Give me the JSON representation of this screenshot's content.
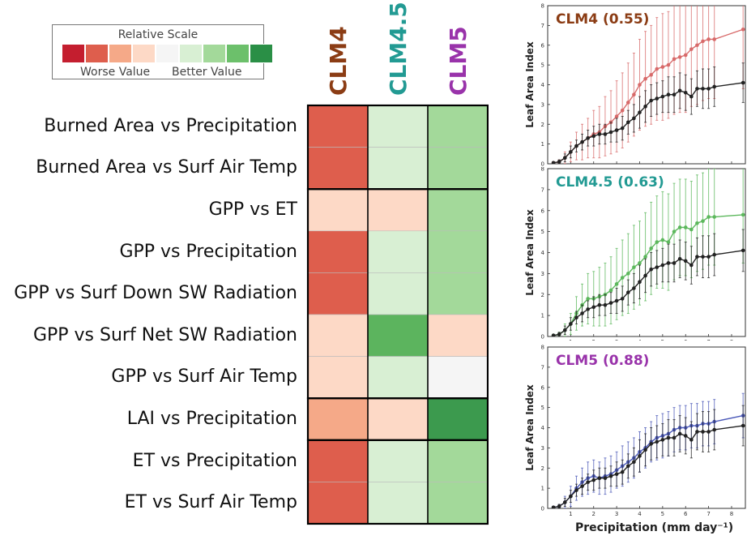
{
  "legend": {
    "title": "Relative Scale",
    "worse_label": "Worse Value",
    "better_label": "Better Value",
    "colors": [
      "#c41e2f",
      "#de5e4d",
      "#f5a988",
      "#fdd9c6",
      "#f5f5f5",
      "#d8efd3",
      "#a3d99a",
      "#6cc06b",
      "#2a8f46"
    ]
  },
  "chart_data": [
    {
      "type": "heatmap",
      "columns": [
        {
          "label": "CLM4",
          "color": "#8b3c14"
        },
        {
          "label": "CLM4.5",
          "color": "#229a93"
        },
        {
          "label": "CLM5",
          "color": "#9933aa"
        }
      ],
      "rows": [
        "Burned Area vs Precipitation",
        "Burned Area vs Surf Air Temp",
        "GPP vs ET",
        "GPP vs Precipitation",
        "GPP vs Surf Down SW Radiation",
        "GPP vs Surf Net SW Radiation",
        "GPP vs Surf Air Temp",
        "LAI vs Precipitation",
        "ET vs Precipitation",
        "ET vs Surf Air Temp"
      ],
      "groups": [
        2,
        5,
        1,
        2
      ],
      "cell_colors": [
        [
          "#de5e4d",
          "#d8efd3",
          "#a3d99a"
        ],
        [
          "#de5e4d",
          "#d8efd3",
          "#a3d99a"
        ],
        [
          "#fdd9c6",
          "#fdd9c6",
          "#a3d99a"
        ],
        [
          "#de5e4d",
          "#d8efd3",
          "#a3d99a"
        ],
        [
          "#de5e4d",
          "#d8efd3",
          "#a3d99a"
        ],
        [
          "#fdd9c6",
          "#5cb45e",
          "#fdd9c6"
        ],
        [
          "#fdd9c6",
          "#d8efd3",
          "#f5f5f5"
        ],
        [
          "#f5a988",
          "#fdd9c6",
          "#3c9a4e"
        ],
        [
          "#de5e4d",
          "#d8efd3",
          "#a3d99a"
        ],
        [
          "#de5e4d",
          "#d8efd3",
          "#a3d99a"
        ]
      ]
    },
    {
      "type": "line",
      "title": "CLM4 (0.55)",
      "title_color": "#8b3c14",
      "ylabel": "Leaf Area Index",
      "xlim": [
        0,
        8.6
      ],
      "ylim": [
        0,
        8
      ],
      "xticks": [
        1,
        2,
        3,
        4,
        5,
        6,
        7,
        8
      ],
      "yticks": [
        0,
        1,
        2,
        3,
        4,
        5,
        6,
        7,
        8
      ],
      "x": [
        0.25,
        0.5,
        0.75,
        1.0,
        1.25,
        1.5,
        1.75,
        2.0,
        2.25,
        2.5,
        2.75,
        3.0,
        3.25,
        3.5,
        3.75,
        4.0,
        4.25,
        4.5,
        4.75,
        5.0,
        5.25,
        5.5,
        5.75,
        6.0,
        6.25,
        6.5,
        6.75,
        7.0,
        7.25,
        8.5
      ],
      "series": [
        {
          "name": "CLM4",
          "color": "#d86a6a",
          "values": [
            0.05,
            0.1,
            0.3,
            0.6,
            0.9,
            1.1,
            1.3,
            1.5,
            1.6,
            1.9,
            2.1,
            2.4,
            2.7,
            3.1,
            3.5,
            4.0,
            4.3,
            4.5,
            4.8,
            4.9,
            5.0,
            5.3,
            5.4,
            5.5,
            5.8,
            6.0,
            6.2,
            6.3,
            6.3,
            6.8
          ],
          "err": [
            0.05,
            0.1,
            0.3,
            0.5,
            0.7,
            0.9,
            1.0,
            1.2,
            1.3,
            1.5,
            1.6,
            1.8,
            1.9,
            2.0,
            2.1,
            2.3,
            2.4,
            2.5,
            2.6,
            2.7,
            2.7,
            2.8,
            2.8,
            2.9,
            2.9,
            3.0,
            3.0,
            3.0,
            3.0,
            3.0
          ]
        },
        {
          "name": "Observed",
          "color": "#222222",
          "values": [
            0.05,
            0.1,
            0.3,
            0.6,
            0.9,
            1.1,
            1.3,
            1.4,
            1.5,
            1.5,
            1.6,
            1.7,
            1.8,
            2.1,
            2.3,
            2.6,
            2.9,
            3.2,
            3.3,
            3.4,
            3.5,
            3.5,
            3.7,
            3.6,
            3.4,
            3.8,
            3.8,
            3.8,
            3.9,
            4.1
          ],
          "err": [
            0.05,
            0.1,
            0.2,
            0.3,
            0.3,
            0.4,
            0.4,
            0.5,
            0.5,
            0.5,
            0.5,
            0.6,
            0.6,
            0.6,
            0.7,
            0.8,
            0.8,
            0.8,
            0.8,
            0.8,
            0.9,
            0.9,
            0.9,
            0.9,
            0.9,
            0.9,
            1.0,
            1.0,
            1.0,
            1.0
          ]
        }
      ]
    },
    {
      "type": "line",
      "title": "CLM4.5 (0.63)",
      "title_color": "#229a93",
      "ylabel": "Leaf Area Index",
      "xlim": [
        0,
        8.6
      ],
      "ylim": [
        0,
        8
      ],
      "xticks": [
        1,
        2,
        3,
        4,
        5,
        6,
        7,
        8
      ],
      "yticks": [
        0,
        1,
        2,
        3,
        4,
        5,
        6,
        7,
        8
      ],
      "x": [
        0.25,
        0.5,
        0.75,
        1.0,
        1.25,
        1.5,
        1.75,
        2.0,
        2.25,
        2.5,
        2.75,
        3.0,
        3.25,
        3.5,
        3.75,
        4.0,
        4.25,
        4.5,
        4.75,
        5.0,
        5.25,
        5.5,
        5.75,
        6.0,
        6.25,
        6.5,
        6.75,
        7.0,
        7.25,
        8.5
      ],
      "series": [
        {
          "name": "CLM4.5",
          "color": "#5cb85c",
          "values": [
            0.05,
            0.1,
            0.3,
            0.6,
            1.1,
            1.5,
            1.8,
            1.8,
            1.9,
            2.0,
            2.2,
            2.5,
            2.8,
            3.0,
            3.3,
            3.5,
            3.8,
            4.2,
            4.5,
            4.6,
            4.5,
            5.0,
            5.2,
            5.2,
            5.1,
            5.4,
            5.5,
            5.7,
            5.7,
            5.8
          ],
          "err": [
            0.05,
            0.1,
            0.3,
            0.5,
            0.8,
            1.0,
            1.2,
            1.3,
            1.4,
            1.5,
            1.6,
            1.7,
            1.8,
            1.9,
            2.0,
            2.0,
            2.1,
            2.2,
            2.2,
            2.3,
            2.3,
            2.3,
            2.3,
            2.3,
            2.3,
            2.3,
            2.3,
            2.3,
            2.3,
            2.3
          ]
        },
        {
          "name": "Observed",
          "color": "#222222",
          "values": [
            0.05,
            0.1,
            0.3,
            0.6,
            0.9,
            1.1,
            1.3,
            1.4,
            1.5,
            1.5,
            1.6,
            1.7,
            1.8,
            2.1,
            2.3,
            2.6,
            2.9,
            3.2,
            3.3,
            3.4,
            3.5,
            3.5,
            3.7,
            3.6,
            3.4,
            3.8,
            3.8,
            3.8,
            3.9,
            4.1
          ],
          "err": [
            0.05,
            0.1,
            0.2,
            0.3,
            0.3,
            0.4,
            0.4,
            0.5,
            0.5,
            0.5,
            0.5,
            0.6,
            0.6,
            0.6,
            0.7,
            0.8,
            0.8,
            0.8,
            0.8,
            0.8,
            0.9,
            0.9,
            0.9,
            0.9,
            0.9,
            0.9,
            1.0,
            1.0,
            1.0,
            1.0
          ]
        }
      ]
    },
    {
      "type": "line",
      "title": "CLM5 (0.88)",
      "title_color": "#9933aa",
      "ylabel": "Leaf Area Index",
      "xlabel": "Precipitation (mm day⁻¹)",
      "xlim": [
        0,
        8.6
      ],
      "ylim": [
        0,
        8
      ],
      "xticks": [
        1,
        2,
        3,
        4,
        5,
        6,
        7,
        8
      ],
      "yticks": [
        0,
        1,
        2,
        3,
        4,
        5,
        6,
        7,
        8
      ],
      "x": [
        0.25,
        0.5,
        0.75,
        1.0,
        1.25,
        1.5,
        1.75,
        2.0,
        2.25,
        2.5,
        2.75,
        3.0,
        3.25,
        3.5,
        3.75,
        4.0,
        4.25,
        4.5,
        4.75,
        5.0,
        5.25,
        5.5,
        5.75,
        6.0,
        6.25,
        6.5,
        6.75,
        7.0,
        7.25,
        8.5
      ],
      "series": [
        {
          "name": "CLM5",
          "color": "#4a58b8",
          "values": [
            0.05,
            0.1,
            0.3,
            0.6,
            1.0,
            1.3,
            1.5,
            1.6,
            1.5,
            1.6,
            1.7,
            1.9,
            2.1,
            2.3,
            2.5,
            2.8,
            3.0,
            3.3,
            3.5,
            3.6,
            3.7,
            3.9,
            4.0,
            4.0,
            4.1,
            4.1,
            4.2,
            4.2,
            4.3,
            4.6
          ],
          "err": [
            0.05,
            0.1,
            0.3,
            0.5,
            0.6,
            0.7,
            0.8,
            0.8,
            0.8,
            0.9,
            0.9,
            0.9,
            1.0,
            1.0,
            1.0,
            1.0,
            1.0,
            1.0,
            1.1,
            1.1,
            1.1,
            1.1,
            1.1,
            1.1,
            1.1,
            1.1,
            1.1,
            1.1,
            1.1,
            1.1
          ]
        },
        {
          "name": "Observed",
          "color": "#222222",
          "values": [
            0.05,
            0.1,
            0.3,
            0.6,
            0.9,
            1.1,
            1.3,
            1.4,
            1.5,
            1.5,
            1.6,
            1.7,
            1.8,
            2.1,
            2.3,
            2.6,
            2.9,
            3.2,
            3.3,
            3.4,
            3.5,
            3.5,
            3.7,
            3.6,
            3.4,
            3.8,
            3.8,
            3.8,
            3.9,
            4.1
          ],
          "err": [
            0.05,
            0.1,
            0.2,
            0.3,
            0.3,
            0.4,
            0.4,
            0.5,
            0.5,
            0.5,
            0.5,
            0.6,
            0.6,
            0.6,
            0.7,
            0.8,
            0.8,
            0.8,
            0.8,
            0.8,
            0.9,
            0.9,
            0.9,
            0.9,
            0.9,
            0.9,
            1.0,
            1.0,
            1.0,
            1.0
          ]
        }
      ]
    }
  ]
}
